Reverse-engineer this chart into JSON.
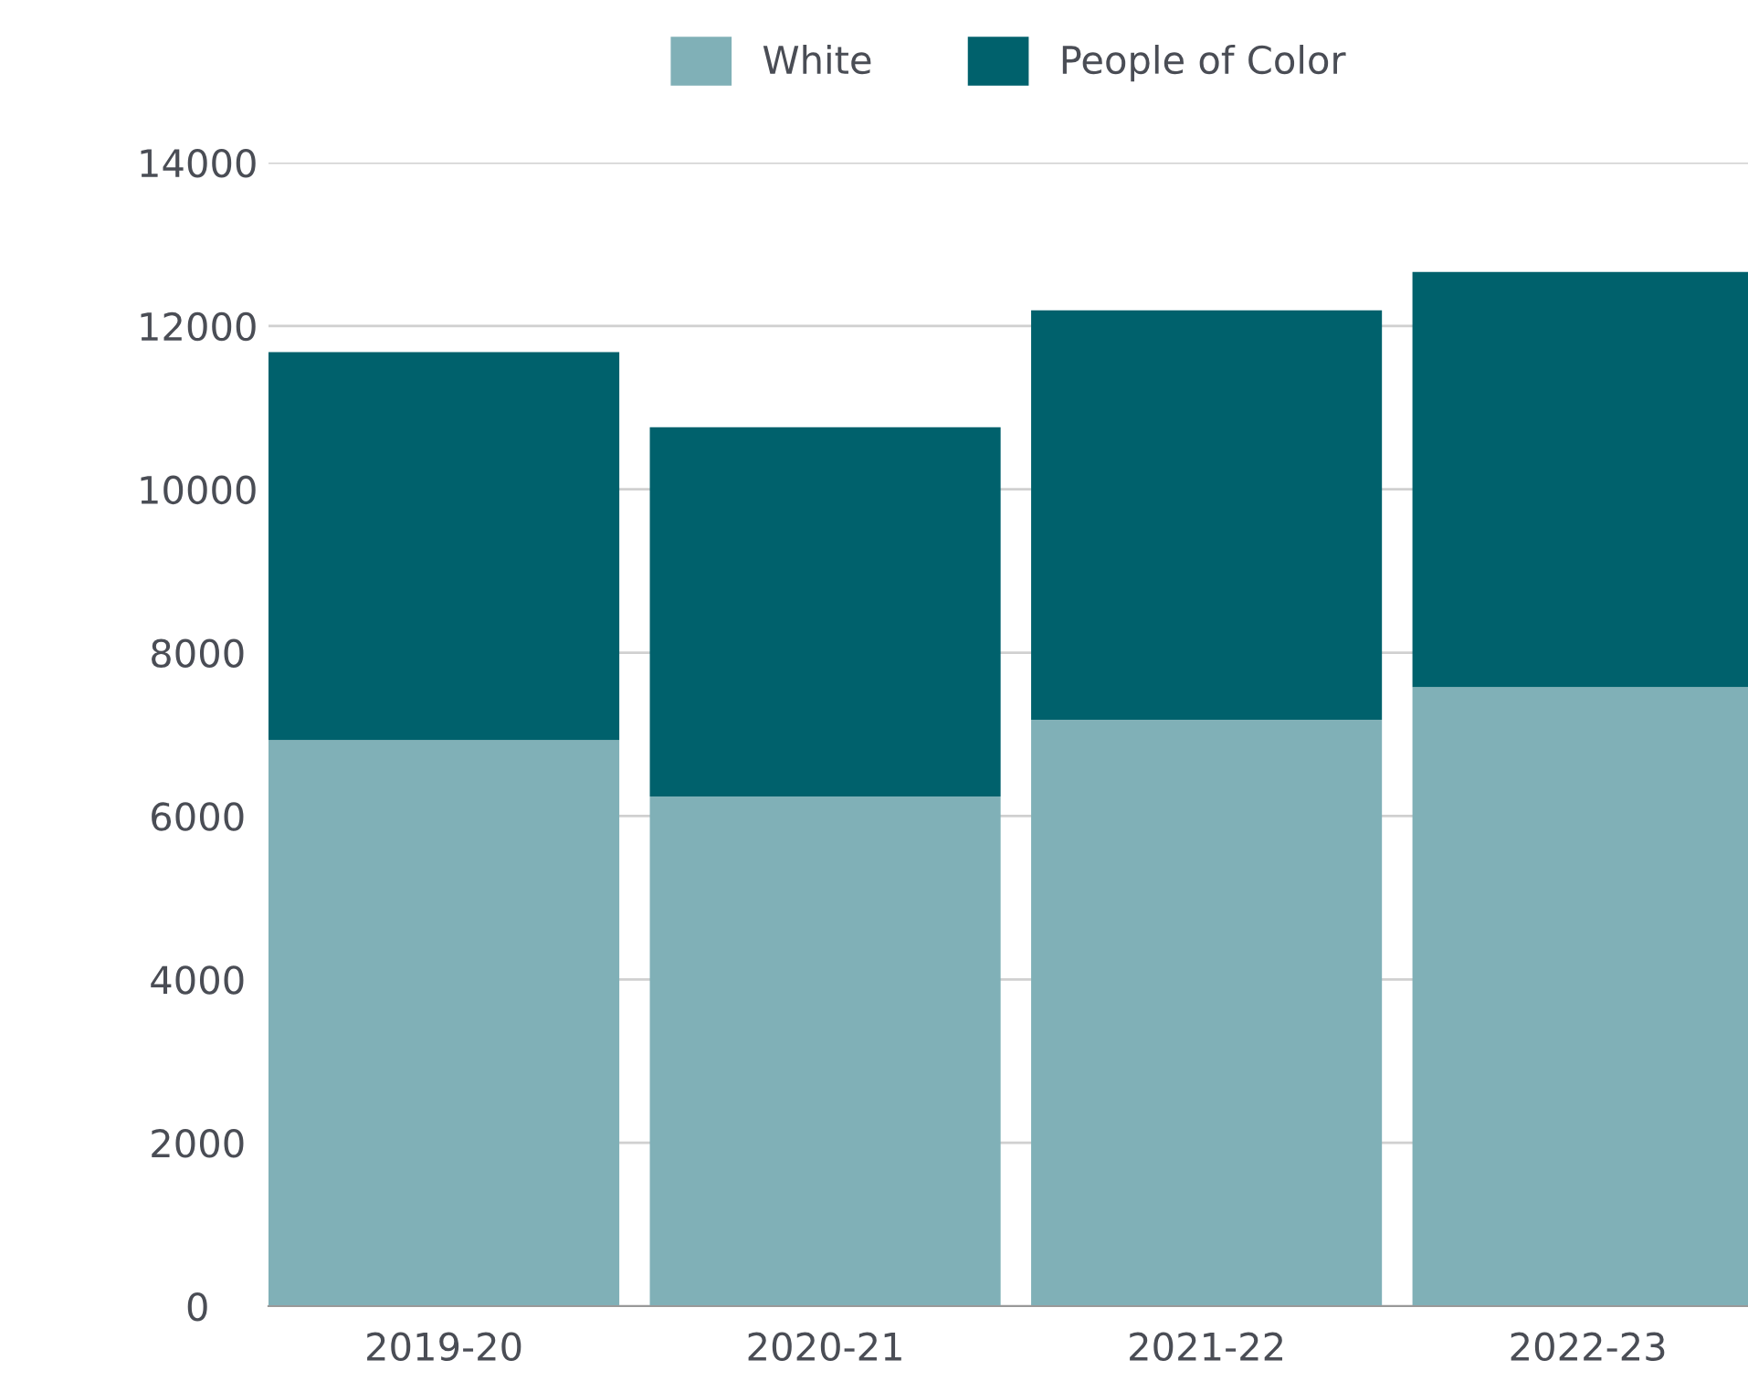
{
  "chart_data": {
    "type": "bar",
    "stacked": true,
    "categories": [
      "2019-20",
      "2020-21",
      "2021-22",
      "2022-23"
    ],
    "series": [
      {
        "name": "White",
        "color": "#80b0b7",
        "values": [
          6930,
          6240,
          7180,
          7580
        ]
      },
      {
        "name": "People of Color",
        "color": "#00616c",
        "values": [
          4750,
          4520,
          5010,
          5080
        ]
      }
    ],
    "ylim": [
      0,
      14000
    ],
    "yticks": [
      0,
      2000,
      4000,
      6000,
      8000,
      10000,
      12000,
      14000
    ],
    "grid": "y",
    "legend": "top"
  }
}
